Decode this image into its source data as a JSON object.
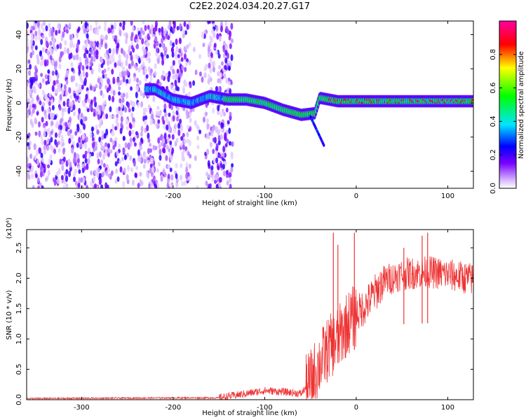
{
  "title": "C2E2.2024.034.20.27.G17",
  "chart_data": [
    {
      "type": "heatmap",
      "xlabel": "Height of straight line (km)",
      "ylabel": "Frequency (Hz)",
      "xlim": [
        -360,
        128
      ],
      "ylim": [
        -50,
        48
      ],
      "x_ticks": [
        -300,
        -200,
        -100,
        0,
        100
      ],
      "y_ticks": [
        -40,
        -20,
        0,
        20,
        40
      ],
      "colorbar": {
        "label": "Normalized spectral amplitude",
        "range": [
          0.0,
          1.0
        ],
        "ticks": [
          0.0,
          0.2,
          0.4,
          0.6,
          0.8
        ]
      },
      "ridge": [
        {
          "x": -220,
          "y": 8
        },
        {
          "x": -200,
          "y": 2
        },
        {
          "x": -180,
          "y": 0
        },
        {
          "x": -160,
          "y": 4
        },
        {
          "x": -140,
          "y": 2
        },
        {
          "x": -120,
          "y": 2
        },
        {
          "x": -100,
          "y": 0
        },
        {
          "x": -80,
          "y": -4
        },
        {
          "x": -60,
          "y": -7
        },
        {
          "x": -45,
          "y": -6
        },
        {
          "x": -40,
          "y": 3
        },
        {
          "x": -20,
          "y": 1
        },
        {
          "x": 0,
          "y": 1
        },
        {
          "x": 50,
          "y": 1
        },
        {
          "x": 128,
          "y": 1
        }
      ]
    },
    {
      "type": "line",
      "xlabel": "Height of straight line (km)",
      "ylabel": "SNR (10 * v/v)",
      "y_multiplier": "(x10⁴)",
      "xlim": [
        -360,
        128
      ],
      "ylim": [
        0,
        2.8
      ],
      "x_ticks": [
        -300,
        -200,
        -100,
        0,
        100
      ],
      "y_ticks": [
        0.0,
        0.5,
        1.0,
        1.5,
        2.0,
        2.5
      ],
      "color": "#ee3333",
      "trend": [
        {
          "x": -360,
          "y": 0.02
        },
        {
          "x": -200,
          "y": 0.03
        },
        {
          "x": -150,
          "y": 0.03
        },
        {
          "x": -120,
          "y": 0.1
        },
        {
          "x": -100,
          "y": 0.15
        },
        {
          "x": -80,
          "y": 0.13
        },
        {
          "x": -60,
          "y": 0.1
        },
        {
          "x": -50,
          "y": 0.3
        },
        {
          "x": -40,
          "y": 0.6
        },
        {
          "x": -30,
          "y": 0.85
        },
        {
          "x": -20,
          "y": 1.0
        },
        {
          "x": -10,
          "y": 1.25
        },
        {
          "x": 0,
          "y": 1.4
        },
        {
          "x": 10,
          "y": 1.55
        },
        {
          "x": 20,
          "y": 1.75
        },
        {
          "x": 30,
          "y": 1.95
        },
        {
          "x": 50,
          "y": 2.07
        },
        {
          "x": 80,
          "y": 2.1
        },
        {
          "x": 100,
          "y": 2.06
        },
        {
          "x": 128,
          "y": 1.98
        }
      ],
      "spikes": [
        {
          "x": -25,
          "y": 2.75
        },
        {
          "x": -20,
          "y": 2.55
        },
        {
          "x": -2,
          "y": 2.75
        },
        {
          "x": 52,
          "y": 2.5
        },
        {
          "x": 72,
          "y": 2.7
        },
        {
          "x": 78,
          "y": 2.75
        }
      ]
    }
  ]
}
